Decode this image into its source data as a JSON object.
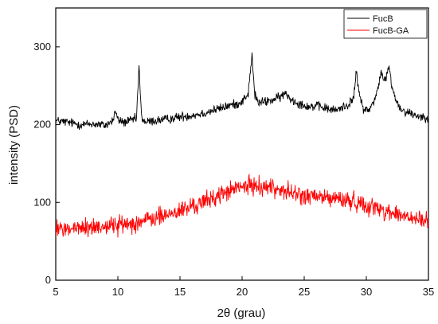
{
  "chart_data": {
    "type": "line",
    "xlabel": "2θ (grau)",
    "ylabel": "intensity (PSD)",
    "xlim": [
      5,
      35
    ],
    "ylim": [
      0,
      350
    ],
    "xticks": [
      5,
      10,
      15,
      20,
      25,
      30,
      35
    ],
    "yticks": [
      0,
      100,
      200,
      300
    ],
    "grid": false,
    "legend_position": "top-right",
    "series": [
      {
        "name": "FucB",
        "color": "#000000",
        "x": [
          5,
          6,
          7,
          8,
          9,
          9.6,
          9.8,
          10,
          10.5,
          11,
          11.5,
          11.7,
          11.9,
          12.2,
          13,
          14,
          15,
          16,
          17,
          18,
          18.5,
          19,
          19.5,
          20,
          20.5,
          20.8,
          21,
          21.3,
          22,
          22.5,
          23,
          23.5,
          24,
          24.5,
          25,
          25.5,
          26,
          26.5,
          27,
          27.5,
          28,
          28.5,
          29,
          29.2,
          29.4,
          29.8,
          30.2,
          30.6,
          31,
          31.2,
          31.4,
          31.6,
          31.8,
          32,
          32.3,
          32.7,
          33,
          33.5,
          34,
          34.5,
          35
        ],
        "y": [
          205,
          203,
          200,
          201,
          199,
          205,
          218,
          206,
          203,
          205,
          208,
          275,
          210,
          203,
          205,
          207,
          210,
          212,
          215,
          220,
          222,
          225,
          226,
          230,
          240,
          290,
          240,
          228,
          230,
          232,
          235,
          240,
          232,
          228,
          225,
          223,
          224,
          222,
          220,
          218,
          222,
          225,
          235,
          270,
          240,
          220,
          218,
          230,
          250,
          270,
          255,
          260,
          275,
          255,
          235,
          222,
          218,
          215,
          212,
          210,
          210
        ]
      },
      {
        "name": "FucB-GA",
        "color": "#ff0000",
        "x": [
          5,
          6,
          7,
          8,
          9,
          10,
          11,
          12,
          13,
          14,
          15,
          16,
          17,
          18,
          19,
          20,
          21,
          22,
          23,
          24,
          25,
          26,
          27,
          28,
          29,
          30,
          31,
          32,
          33,
          34,
          35
        ],
        "y": [
          65,
          66,
          67,
          68,
          70,
          71,
          73,
          76,
          80,
          84,
          89,
          95,
          101,
          108,
          115,
          120,
          122,
          120,
          117,
          112,
          108,
          107,
          106,
          104,
          101,
          97,
          92,
          87,
          82,
          78,
          75
        ]
      }
    ]
  }
}
